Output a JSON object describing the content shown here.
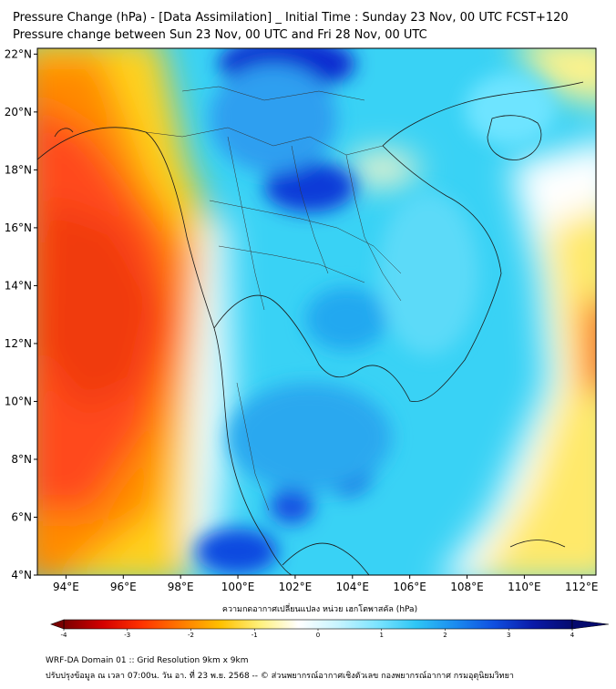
{
  "title_line1": "Pressure Change (hPa) - [Data Assimilation] _ Initial Time : Sunday 23 Nov, 00 UTC FCST+120",
  "title_line2": "Pressure change between Sun 23 Nov, 00 UTC and Fri 28 Nov, 00 UTC",
  "map": {
    "lon_range": [
      93,
      112.5
    ],
    "lat_range": [
      4,
      22.2
    ],
    "lon_ticks": [
      "94°E",
      "96°E",
      "98°E",
      "100°E",
      "102°E",
      "104°E",
      "106°E",
      "108°E",
      "110°E",
      "112°E"
    ],
    "lon_tick_values": [
      94,
      96,
      98,
      100,
      102,
      104,
      106,
      108,
      110,
      112
    ],
    "lat_ticks": [
      "4°N",
      "6°N",
      "8°N",
      "10°N",
      "12°N",
      "14°N",
      "16°N",
      "18°N",
      "20°N",
      "22°N"
    ],
    "lat_tick_values": [
      4,
      6,
      8,
      10,
      12,
      14,
      16,
      18,
      20,
      22
    ]
  },
  "colorbar": {
    "title": "ความกดอากาศเปลี่ยนแปลง หน่วย เฮกโตพาสคัล (hPa)",
    "labels": [
      "-4",
      "-3",
      "-2",
      "-1",
      "0",
      "1",
      "2",
      "3",
      "4"
    ],
    "values": [
      -4,
      -3,
      -2,
      -1,
      0,
      1,
      2,
      3,
      4
    ],
    "colors": [
      "#7a0000",
      "#d40000",
      "#ff3300",
      "#ff7a00",
      "#ffc000",
      "#fff07a",
      "#ffffff",
      "#c8f4ff",
      "#7de4ff",
      "#2fc6f5",
      "#1a8cf0",
      "#0f4fe0",
      "#0a1aa8",
      "#050a6e"
    ]
  },
  "footer_line1": "WRF-DA Domain 01 :: Grid Resolution 9km x 9km",
  "footer_line2": "ปรับปรุงข้อมูล ณ เวลา 07:00น. วัน อา. ที่ 23 พ.ย. 2568 -- © ส่วนพยากรณ์อากาศเชิงตัวเลข กองพยากรณ์อากาศ กรมอุตุนิยมวิทยา"
}
